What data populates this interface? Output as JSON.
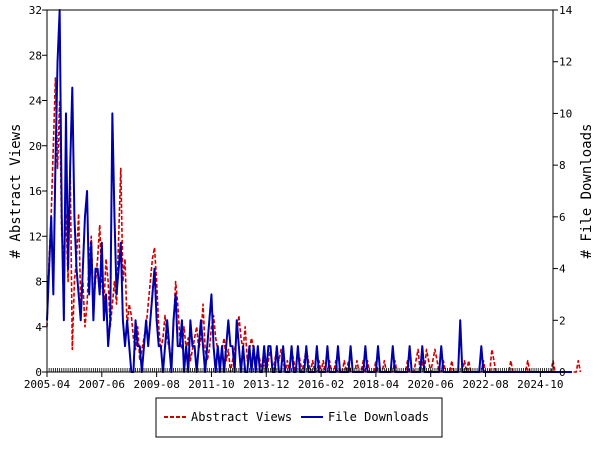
{
  "chart_data": {
    "type": "line",
    "xlabel": "",
    "ylabel_left": "# Abstract Views",
    "ylabel_right": "# File Downloads",
    "x_tick_labels": [
      "2005-04",
      "2007-06",
      "2009-08",
      "2011-10",
      "2013-12",
      "2016-02",
      "2018-04",
      "2020-06",
      "2022-08",
      "2024-10"
    ],
    "x_tick_index": [
      0,
      26,
      52,
      78,
      104,
      130,
      156,
      182,
      208,
      234
    ],
    "x_range": [
      0,
      240
    ],
    "ylim_left": [
      0,
      32
    ],
    "yticks_left": [
      0,
      4,
      8,
      12,
      16,
      20,
      24,
      28,
      32
    ],
    "ylim_right": [
      0,
      14
    ],
    "yticks_right": [
      0,
      2,
      4,
      6,
      8,
      10,
      12,
      14
    ],
    "grid": false,
    "legend_position": "bottom-center",
    "series": [
      {
        "name": "Abstract Views",
        "axis": "left",
        "color": "#cc0000",
        "style": "dashed",
        "values": [
          4,
          10,
          14,
          20,
          26,
          18,
          24,
          12,
          10,
          14,
          8,
          18,
          2,
          8,
          10,
          14,
          6,
          8,
          4,
          6,
          10,
          12,
          6,
          8,
          10,
          13,
          8,
          6,
          10,
          8,
          4,
          6,
          8,
          6,
          12,
          18,
          8,
          10,
          4,
          6,
          5,
          3,
          2,
          4,
          1,
          2,
          3,
          4,
          6,
          8,
          10,
          11,
          8,
          4,
          2,
          3,
          5,
          3,
          2,
          1,
          4,
          8,
          6,
          3,
          2,
          4,
          2,
          3,
          1,
          2,
          3,
          4,
          2,
          3,
          6,
          2,
          1,
          2,
          4,
          5,
          3,
          2,
          1,
          2,
          3,
          1,
          2,
          0,
          1,
          2,
          3,
          5,
          3,
          2,
          4,
          1,
          2,
          3,
          2,
          1,
          2,
          1,
          0,
          1,
          0,
          1,
          2,
          0,
          1,
          2,
          1,
          2,
          1,
          0,
          1,
          0,
          2,
          1,
          0,
          2,
          1,
          0,
          1,
          2,
          1,
          0,
          1,
          0,
          0,
          1,
          0,
          1,
          0,
          0,
          1,
          0,
          0,
          1,
          0,
          0,
          0,
          1,
          0,
          1,
          0,
          0,
          0,
          1,
          0,
          0,
          1,
          0,
          1,
          0,
          0,
          0,
          1,
          0,
          0,
          0,
          1,
          0,
          0,
          0,
          0,
          1,
          0,
          0,
          0,
          0,
          0,
          1,
          0,
          0,
          0,
          1,
          2,
          0,
          1,
          0,
          2,
          1,
          0,
          1,
          2,
          1,
          0,
          0,
          1,
          0,
          0,
          0,
          1,
          0,
          0,
          0,
          0,
          0,
          1,
          0,
          1,
          0,
          0,
          0,
          0,
          0,
          0,
          1,
          0,
          0,
          0,
          2,
          1,
          0,
          0,
          0,
          0,
          0,
          0,
          0,
          1,
          0,
          0,
          0,
          0,
          0,
          0,
          0,
          1,
          0,
          0,
          0,
          0,
          0,
          0,
          0,
          0,
          0,
          0,
          0,
          1,
          0,
          0,
          0,
          0,
          0,
          0,
          0,
          0,
          0,
          0,
          0,
          1,
          0
        ]
      },
      {
        "name": "File Downloads",
        "axis": "right",
        "color": "#0000aa",
        "style": "solid",
        "values": [
          2,
          4,
          6,
          3,
          8,
          12,
          14,
          6,
          2,
          10,
          4,
          8,
          11,
          6,
          4,
          3,
          2,
          4,
          6,
          7,
          3,
          5,
          2,
          4,
          4,
          3,
          5,
          2,
          3,
          1,
          2,
          10,
          6,
          3,
          4,
          5,
          2,
          1,
          2,
          1,
          0,
          0,
          2,
          1,
          1,
          0,
          1,
          2,
          1,
          2,
          3,
          4,
          2,
          1,
          1,
          0,
          1,
          2,
          1,
          0,
          2,
          3,
          1,
          1,
          2,
          0,
          1,
          0,
          2,
          1,
          1,
          0,
          1,
          2,
          1,
          0,
          1,
          2,
          3,
          1,
          0,
          1,
          0,
          1,
          0,
          1,
          2,
          1,
          1,
          0,
          2,
          1,
          0,
          1,
          0,
          0,
          1,
          0,
          1,
          0,
          1,
          0,
          0,
          1,
          0,
          1,
          1,
          0,
          0,
          1,
          0,
          0,
          1,
          0,
          0,
          0,
          1,
          0,
          0,
          1,
          0,
          0,
          0,
          1,
          0,
          0,
          0,
          0,
          1,
          0,
          0,
          0,
          0,
          1,
          0,
          0,
          0,
          0,
          1,
          0,
          0,
          0,
          0,
          0,
          1,
          0,
          0,
          0,
          0,
          0,
          0,
          1,
          0,
          0,
          0,
          0,
          0,
          1,
          0,
          0,
          0,
          0,
          0,
          0,
          1,
          0,
          0,
          0,
          0,
          0,
          0,
          0,
          1,
          0,
          0,
          0,
          0,
          0,
          1,
          0,
          0,
          0,
          0,
          0,
          0,
          0,
          0,
          1,
          0,
          0,
          0,
          0,
          0,
          0,
          0,
          0,
          2,
          0,
          0,
          0,
          0,
          0,
          0,
          0,
          0,
          0,
          1,
          0,
          0,
          0,
          0,
          0,
          0,
          0,
          0,
          0,
          0,
          0,
          0,
          0,
          0,
          0,
          0,
          0,
          0,
          0,
          0,
          0,
          0,
          0,
          0,
          0,
          0,
          0,
          0,
          0,
          0,
          0,
          0,
          0,
          0,
          0,
          0,
          0,
          0,
          0,
          0,
          0,
          0,
          0
        ]
      }
    ]
  }
}
